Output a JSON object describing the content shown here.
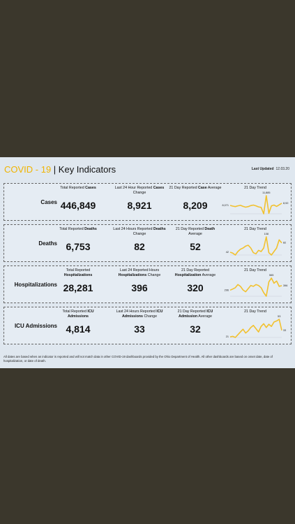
{
  "header": {
    "title_highlight": "COVID - 19",
    "title_rest": " | Key Indicators",
    "updated_label": "Last Updated",
    "updated_date": "12.03.20"
  },
  "rows": [
    {
      "label": "Cases",
      "metrics": [
        {
          "header": [
            {
              "text": "Total Reported "
            },
            {
              "text": "Cases",
              "bold": true
            }
          ],
          "value": "446,849"
        },
        {
          "header": [
            {
              "text": "Last 24 Hour Reported "
            },
            {
              "text": "Cases",
              "bold": true
            },
            {
              "text": " Change"
            }
          ],
          "value": "8,921"
        },
        {
          "header": [
            {
              "text": "21 Day Reported "
            },
            {
              "text": "Case",
              "bold": true
            },
            {
              "text": " Average"
            }
          ],
          "value": "8,209"
        }
      ],
      "trend": {
        "title": "21 Day Trend",
        "values": [
          8071,
          7800,
          7600,
          7900,
          8100,
          7700,
          7400,
          7600,
          8000,
          8200,
          7900,
          7500,
          7300,
          4800,
          11885,
          5000,
          7900,
          8200,
          7700,
          8300,
          8921
        ],
        "value_labels": [
          "8,071",
          null,
          null,
          null,
          null,
          null,
          null,
          null,
          null,
          null,
          null,
          null,
          null,
          null,
          "11,885",
          null,
          null,
          null,
          null,
          null,
          "8,921"
        ]
      }
    },
    {
      "label": "Deaths",
      "metrics": [
        {
          "header": [
            {
              "text": "Total Reported "
            },
            {
              "text": "Deaths",
              "bold": true
            }
          ],
          "value": "6,753"
        },
        {
          "header": [
            {
              "text": "Last 24 Hours Reported "
            },
            {
              "text": "Deaths",
              "bold": true
            },
            {
              "text": " Change"
            }
          ],
          "value": "82"
        },
        {
          "header": [
            {
              "text": "21 Day Reported "
            },
            {
              "text": "Death",
              "bold": true
            },
            {
              "text": " Average"
            }
          ],
          "value": "52"
        }
      ],
      "trend": {
        "title": "21 Day Trend",
        "values": [
          42,
          38,
          30,
          45,
          55,
          60,
          68,
          72,
          60,
          40,
          35,
          50,
          45,
          60,
          108,
          40,
          30,
          45,
          60,
          95,
          82
        ],
        "value_labels": [
          "42",
          null,
          null,
          null,
          null,
          null,
          null,
          null,
          null,
          null,
          null,
          null,
          null,
          null,
          "108",
          null,
          null,
          null,
          null,
          null,
          "82"
        ]
      }
    },
    {
      "label": "Hospitalizations",
      "metrics": [
        {
          "header": [
            {
              "text": "Total Reported "
            },
            {
              "text": "Hospitalizations",
              "bold": true
            }
          ],
          "value": "28,281"
        },
        {
          "header": [
            {
              "text": "Last 24 Reported Hours "
            },
            {
              "text": "Hospitalizations",
              "bold": true
            },
            {
              "text": " Change"
            }
          ],
          "value": "396"
        },
        {
          "header": [
            {
              "text": "21 Day Reported "
            },
            {
              "text": "Hospitalization",
              "bold": true
            },
            {
              "text": " Average"
            }
          ],
          "value": "320"
        }
      ],
      "trend": {
        "title": "21 Day Trend",
        "values": [
          296,
          320,
          350,
          420,
          380,
          300,
          260,
          330,
          400,
          380,
          420,
          400,
          350,
          240,
          160,
          480,
          565,
          450,
          500,
          380,
          396
        ],
        "value_labels": [
          "296",
          null,
          null,
          null,
          null,
          null,
          null,
          null,
          null,
          null,
          null,
          null,
          null,
          null,
          null,
          null,
          "565",
          null,
          null,
          null,
          "396"
        ]
      }
    },
    {
      "label": "ICU Admissions",
      "metrics": [
        {
          "header": [
            {
              "text": "Total Reported "
            },
            {
              "text": "ICU Admissions",
              "bold": true
            }
          ],
          "value": "4,814"
        },
        {
          "header": [
            {
              "text": "Last 24 Hours Reported "
            },
            {
              "text": "ICU Admissions",
              "bold": true
            },
            {
              "text": " Change"
            }
          ],
          "value": "33"
        },
        {
          "header": [
            {
              "text": "21 Day Reported "
            },
            {
              "text": "ICU Admission",
              "bold": true
            },
            {
              "text": " Average"
            }
          ],
          "value": "32"
        }
      ],
      "trend": {
        "title": "21 Day Trend",
        "values": [
          21,
          22,
          20,
          25,
          30,
          35,
          28,
          32,
          38,
          42,
          36,
          30,
          40,
          45,
          38,
          44,
          40,
          48,
          50,
          53,
          33
        ],
        "value_labels": [
          "21",
          null,
          null,
          null,
          null,
          null,
          null,
          null,
          null,
          null,
          null,
          null,
          null,
          null,
          null,
          null,
          null,
          null,
          null,
          "53",
          "33"
        ]
      }
    }
  ],
  "footer": "All dates are based when an indicator is reported and will not match data in other COVID-19 dashboards provided by the Ohio Department of Health. All other dashboards are based on onset date, date of hospitalization, or date of death."
}
